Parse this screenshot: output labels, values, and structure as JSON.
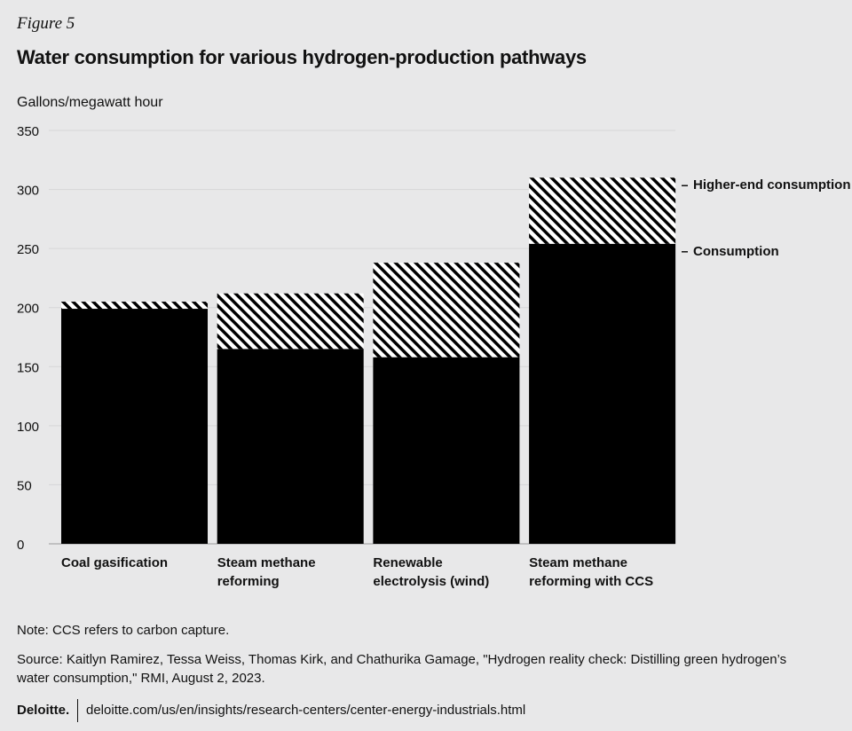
{
  "chart_data": {
    "type": "stacked_bar",
    "figure_label": "Figure 5",
    "title": "Water consumption for various hydrogen-production pathways",
    "y_axis_label": "Gallons/megawatt hour",
    "categories": [
      "Coal gasification",
      "Steam methane reforming",
      "Renewable electrolysis (wind)",
      "Steam methane reforming with CCS"
    ],
    "series": [
      {
        "name": "Consumption",
        "color": "#000000",
        "values": [
          199,
          165,
          158,
          254
        ]
      },
      {
        "name": "Higher-end consumption",
        "color": "#000000",
        "pattern": "hatch",
        "values": [
          6,
          47,
          80,
          56
        ]
      }
    ],
    "ylim": [
      0,
      350
    ],
    "yticks": [
      0,
      50,
      100,
      150,
      200,
      250,
      300,
      350
    ],
    "grid": true,
    "legend": "right",
    "note": "Note: CCS refers to carbon capture.",
    "source": "Source: Kaitlyn Ramirez, Tessa Weiss, Thomas Kirk, and Chathurika Gamage, \"Hydrogen reality check: Distilling green hydrogen’s water consumption,\" RMI, August 2, 2023.",
    "brand": "Deloitte.",
    "url": "deloitte.com/us/en/insights/research-centers/center-energy-industrials.html"
  }
}
